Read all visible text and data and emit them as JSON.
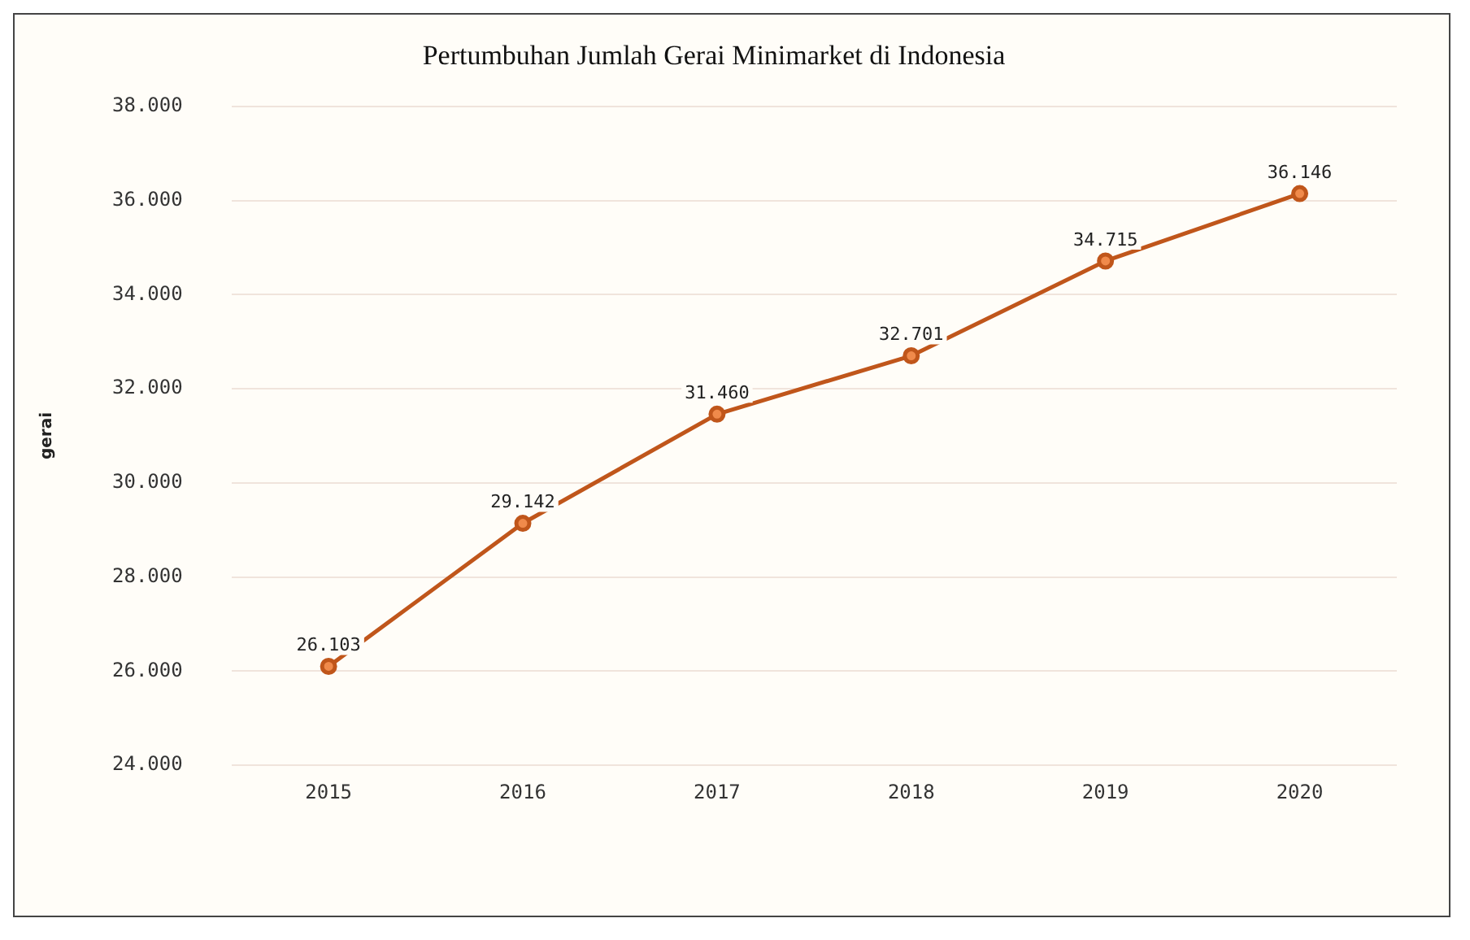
{
  "chart_data": {
    "type": "line",
    "title": "Pertumbuhan Jumlah Gerai Minimarket di Indonesia",
    "ylabel": "gerai",
    "categories": [
      "2015",
      "2016",
      "2017",
      "2018",
      "2019",
      "2020"
    ],
    "series": [
      {
        "color": "#c0561b",
        "values": [
          26103,
          29142,
          31460,
          32701,
          34715,
          36146
        ],
        "value_labels": [
          "26.103",
          "29.142",
          "31.460",
          "32.701",
          "34.715",
          "36.146"
        ]
      }
    ],
    "ylim": [
      24000,
      38000
    ],
    "yticks": [
      {
        "value": 24000,
        "label": "24.000"
      },
      {
        "value": 26000,
        "label": "26.000"
      },
      {
        "value": 28000,
        "label": "28.000"
      },
      {
        "value": 30000,
        "label": "30.000"
      },
      {
        "value": 32000,
        "label": "32.000"
      },
      {
        "value": 34000,
        "label": "34.000"
      },
      {
        "value": 36000,
        "label": "36.000"
      },
      {
        "value": 38000,
        "label": "38.000"
      }
    ],
    "grid": "y",
    "marker": "circle",
    "line_style": "solid",
    "legend": false
  }
}
